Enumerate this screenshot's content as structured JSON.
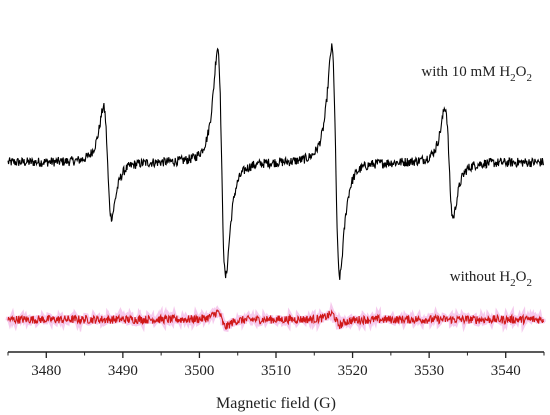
{
  "chart_data": {
    "type": "line",
    "title": "",
    "xlabel": "Magnetic field (G)",
    "ylabel": "",
    "xlim": [
      3475,
      3545
    ],
    "x_ticks": [
      3480,
      3490,
      3500,
      3510,
      3520,
      3530,
      3540
    ],
    "x_tick_labels": [
      "3480",
      "3490",
      "3500",
      "3510",
      "3520",
      "3530",
      "3540"
    ],
    "grid": false,
    "y_ticks_shown": false,
    "series": [
      {
        "label_prefix": "with 10 mM H",
        "label_sub1": "2",
        "label_mid": "O",
        "label_sub2": "2",
        "color": "#000000",
        "baseline": 0,
        "noise_amplitude": 0.04,
        "peaks": [
          {
            "center": 3488.0,
            "amplitude": 0.6,
            "width": 0.9
          },
          {
            "center": 3502.9,
            "amplitude": 1.25,
            "width": 0.9
          },
          {
            "center": 3517.8,
            "amplitude": 1.25,
            "width": 0.9
          },
          {
            "center": 3532.6,
            "amplitude": 0.6,
            "width": 0.9
          }
        ]
      },
      {
        "label_prefix": "without H",
        "label_sub1": "2",
        "label_mid": "O",
        "label_sub2": "2",
        "color": "#d01818",
        "baseline": -1.45,
        "noise_amplitude": 0.035,
        "peaks": [
          {
            "center": 3502.9,
            "amplitude": 0.08,
            "width": 0.9
          },
          {
            "center": 3517.8,
            "amplitude": 0.06,
            "width": 0.9
          }
        ]
      }
    ],
    "ylim": [
      -1.75,
      1.45
    ]
  }
}
